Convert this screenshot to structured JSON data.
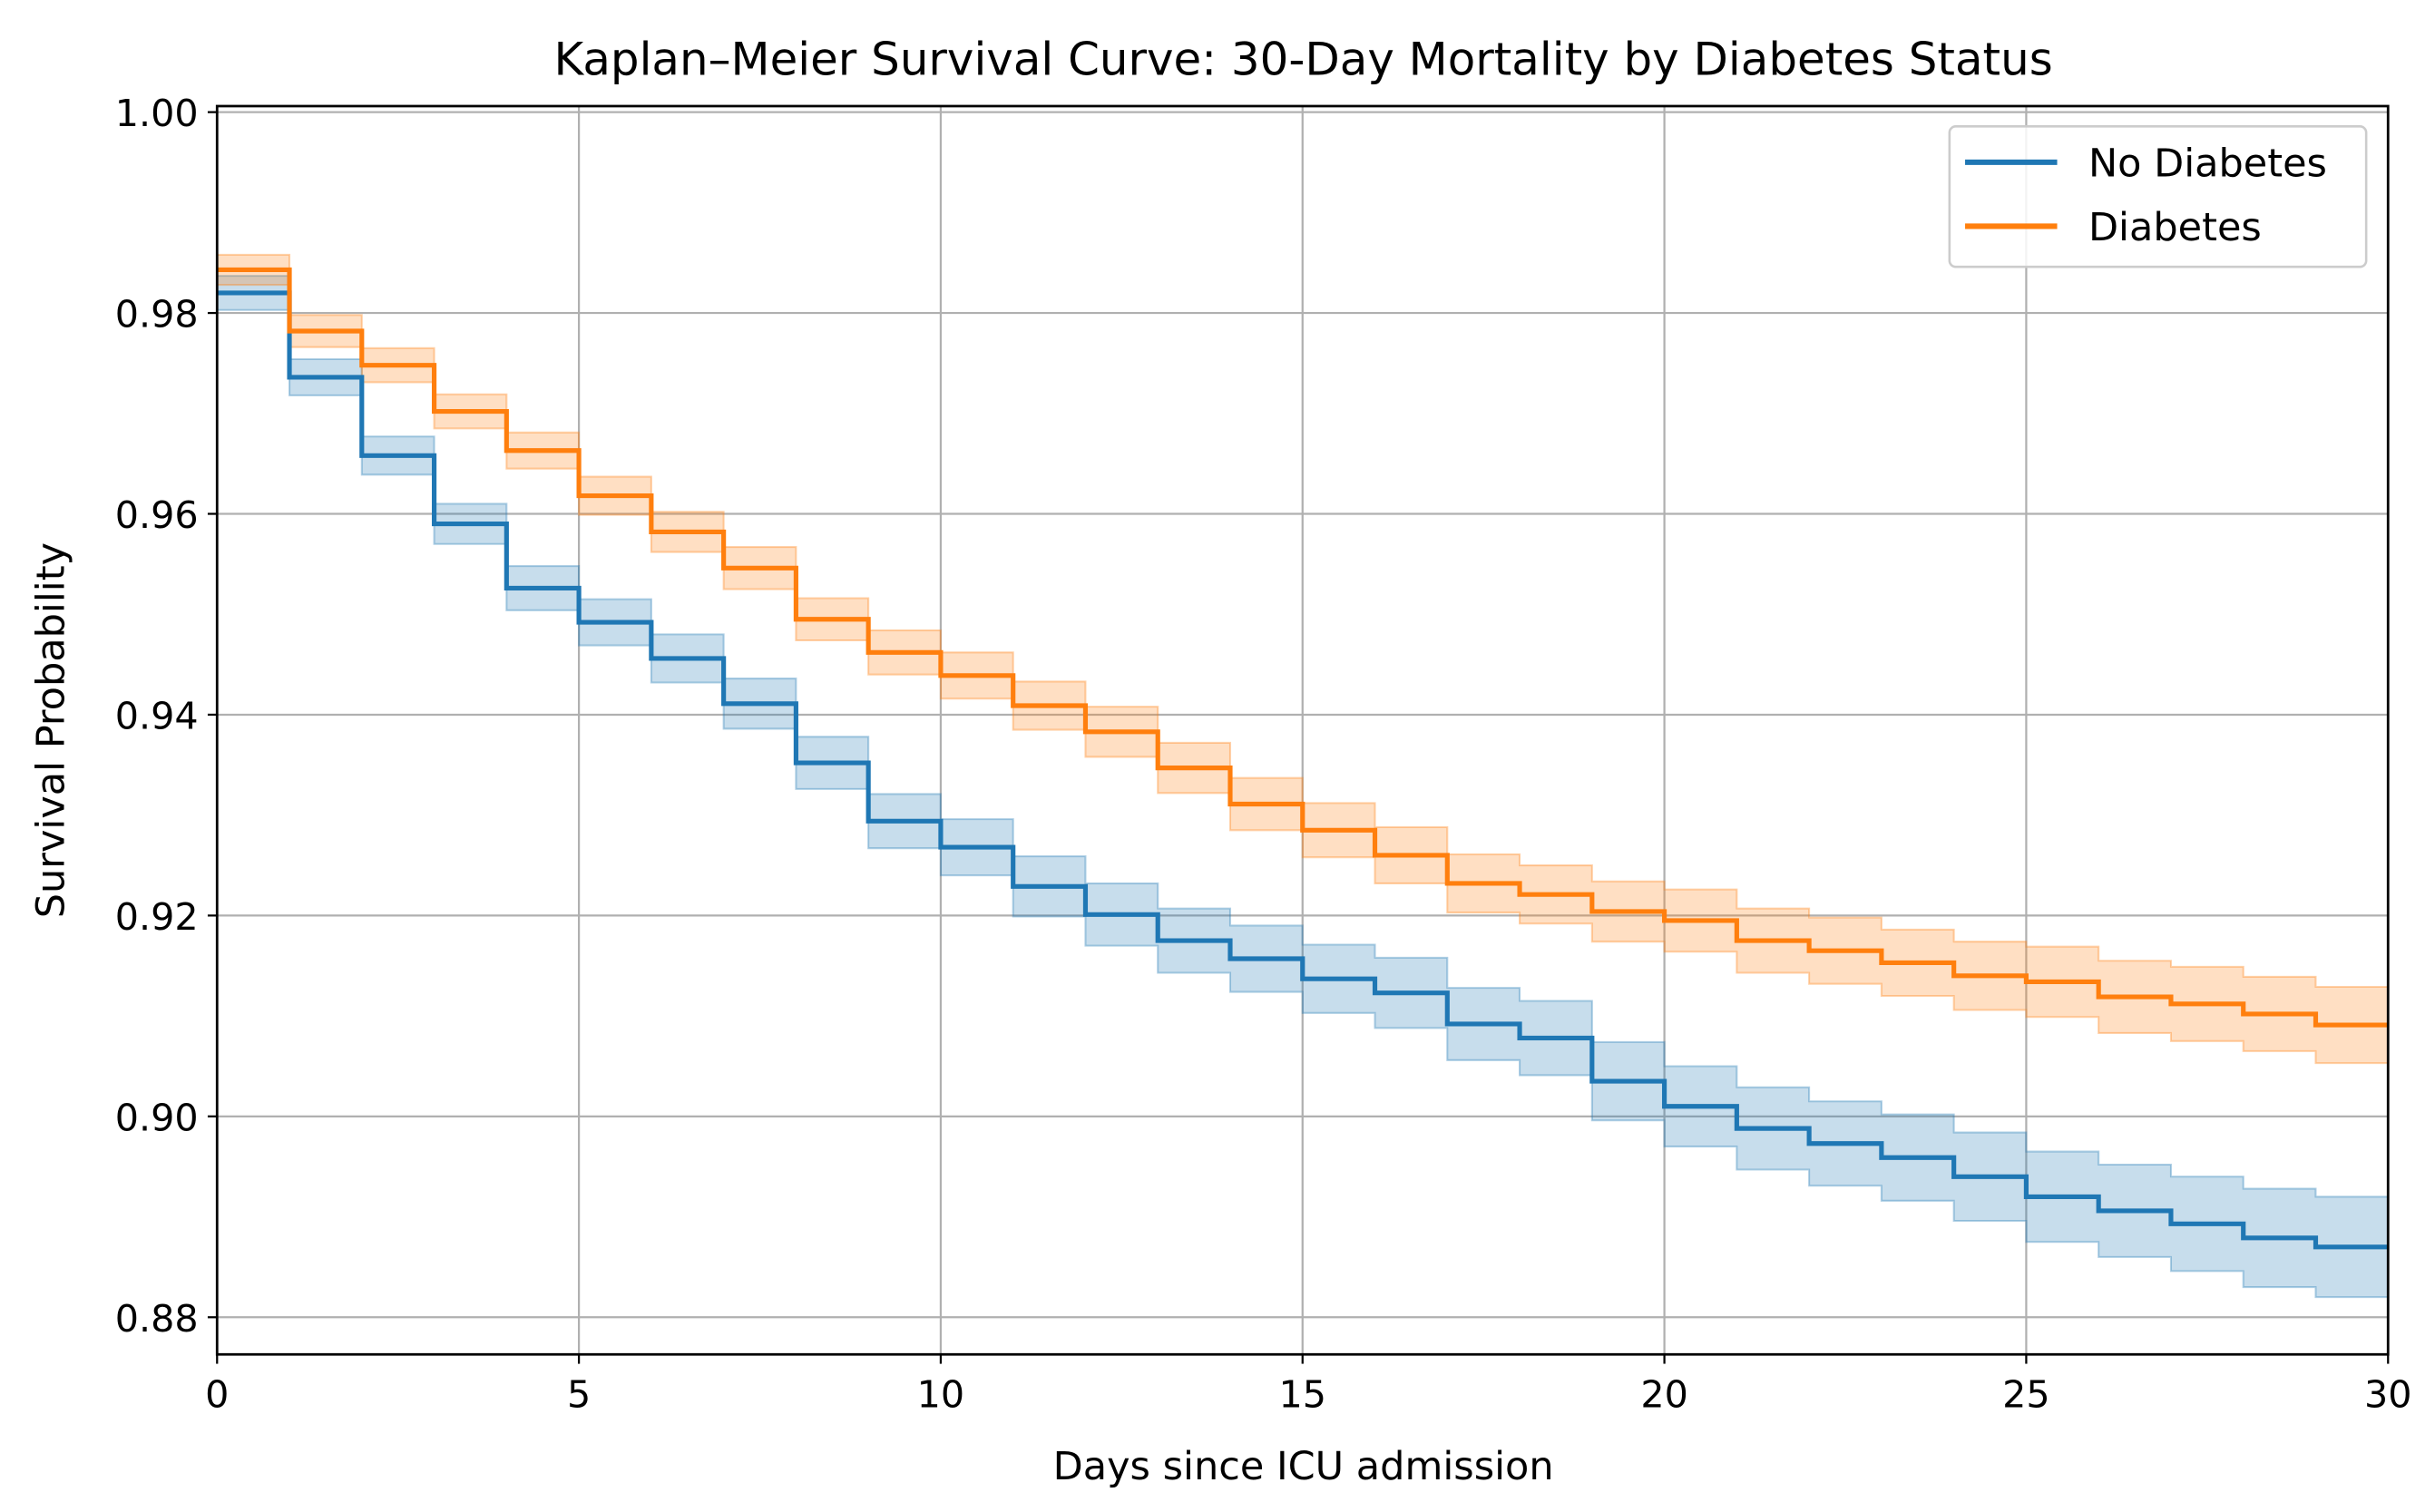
{
  "chart_data": {
    "type": "line",
    "subtype": "step-with-confidence-bands",
    "title": "Kaplan–Meier Survival Curve: 30-Day Mortality by Diabetes Status",
    "xlabel": "Days since ICU admission",
    "ylabel": "Survival Probability",
    "xlim": [
      0,
      30
    ],
    "ylim": [
      0.8763,
      1.0006
    ],
    "xticks": [
      "0",
      "5",
      "10",
      "15",
      "20",
      "25",
      "30"
    ],
    "xtick_values": [
      0,
      5,
      10,
      15,
      20,
      25,
      30
    ],
    "yticks": [
      "0.88",
      "0.90",
      "0.92",
      "0.94",
      "0.96",
      "0.98",
      "1.00"
    ],
    "ytick_values": [
      0.88,
      0.9,
      0.92,
      0.94,
      0.96,
      0.98,
      1.0
    ],
    "grid": true,
    "legend_position": "top-right",
    "x": [
      0,
      1,
      2,
      3,
      4,
      5,
      6,
      7,
      8,
      9,
      10,
      11,
      12,
      13,
      14,
      15,
      16,
      17,
      18,
      19,
      20,
      21,
      22,
      23,
      24,
      25,
      26,
      27,
      28,
      29
    ],
    "x_end": 30,
    "series": [
      {
        "name": "No Diabetes",
        "color": "#1f77b4",
        "values": [
          0.982,
          0.9736,
          0.9658,
          0.959,
          0.9526,
          0.9492,
          0.9456,
          0.9411,
          0.9352,
          0.9294,
          0.9268,
          0.9229,
          0.9201,
          0.9175,
          0.9157,
          0.9137,
          0.9123,
          0.9092,
          0.9078,
          0.9035,
          0.901,
          0.8988,
          0.8973,
          0.8959,
          0.894,
          0.892,
          0.8906,
          0.8893,
          0.8879,
          0.887
        ],
        "ci_lower": [
          0.9803,
          0.9718,
          0.9639,
          0.957,
          0.9504,
          0.9469,
          0.9432,
          0.9386,
          0.9326,
          0.9267,
          0.924,
          0.9199,
          0.917,
          0.9143,
          0.9124,
          0.9103,
          0.9088,
          0.9056,
          0.9041,
          0.8996,
          0.897,
          0.8947,
          0.8931,
          0.8916,
          0.8896,
          0.8875,
          0.886,
          0.8846,
          0.883,
          0.882
        ],
        "ci_upper": [
          0.9837,
          0.9754,
          0.9677,
          0.961,
          0.9548,
          0.9515,
          0.948,
          0.9436,
          0.9378,
          0.9321,
          0.9296,
          0.9259,
          0.9232,
          0.9207,
          0.919,
          0.9171,
          0.9158,
          0.9128,
          0.9115,
          0.9074,
          0.905,
          0.9029,
          0.9015,
          0.9002,
          0.8984,
          0.8965,
          0.8952,
          0.894,
          0.8928,
          0.892
        ]
      },
      {
        "name": "Diabetes",
        "color": "#ff7f0e",
        "values": [
          0.9843,
          0.9782,
          0.9748,
          0.9702,
          0.9663,
          0.9618,
          0.9582,
          0.9546,
          0.9495,
          0.9462,
          0.9439,
          0.9409,
          0.9383,
          0.9347,
          0.9311,
          0.9285,
          0.926,
          0.9232,
          0.9221,
          0.9204,
          0.9195,
          0.9175,
          0.9165,
          0.9153,
          0.914,
          0.9134,
          0.9119,
          0.9112,
          0.9102,
          0.9091
        ],
        "ci_lower": [
          0.9828,
          0.9766,
          0.9731,
          0.9685,
          0.9645,
          0.9599,
          0.9562,
          0.9525,
          0.9474,
          0.944,
          0.9416,
          0.9385,
          0.9358,
          0.9322,
          0.9285,
          0.9258,
          0.9232,
          0.9203,
          0.9192,
          0.9174,
          0.9164,
          0.9143,
          0.9132,
          0.912,
          0.9106,
          0.9099,
          0.9083,
          0.9075,
          0.9065,
          0.9053
        ],
        "ci_upper": [
          0.9858,
          0.9798,
          0.9765,
          0.9719,
          0.9681,
          0.9637,
          0.9602,
          0.9567,
          0.9516,
          0.9484,
          0.9462,
          0.9433,
          0.9408,
          0.9372,
          0.9337,
          0.9312,
          0.9288,
          0.9261,
          0.925,
          0.9234,
          0.9226,
          0.9207,
          0.9198,
          0.9186,
          0.9174,
          0.9169,
          0.9155,
          0.9149,
          0.9139,
          0.9129
        ]
      }
    ]
  }
}
